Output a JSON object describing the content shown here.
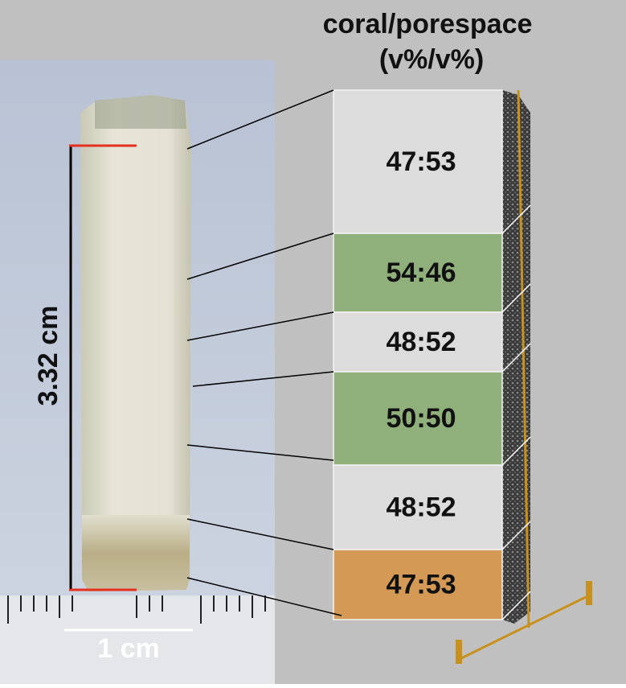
{
  "header": {
    "title": "coral/porespace",
    "subtitle": "(v%/v%)"
  },
  "photo": {
    "length_label": "3.32 cm",
    "scale_label": "1 cm"
  },
  "segments": [
    {
      "label": "47:53"
    },
    {
      "label": "54:46"
    },
    {
      "label": "48:52"
    },
    {
      "label": "50:50"
    },
    {
      "label": "48:52"
    },
    {
      "label": "47:53"
    }
  ]
}
